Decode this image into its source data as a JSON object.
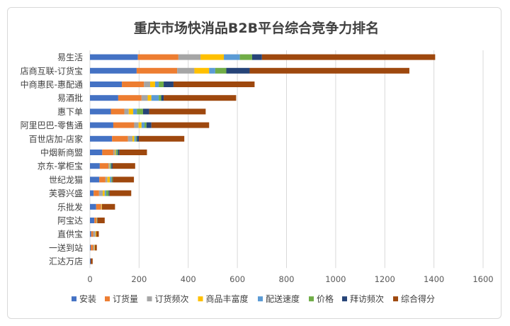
{
  "chart_data": {
    "type": "bar",
    "orientation": "horizontal",
    "stacked": true,
    "title": "重庆市场快消品B2B平台综合竞争力排名",
    "xlabel": "",
    "ylabel": "",
    "xlim": [
      0,
      1600
    ],
    "xticks": [
      0,
      200,
      400,
      600,
      800,
      1000,
      1200,
      1400,
      1600
    ],
    "grid": true,
    "legend_position": "bottom",
    "categories": [
      "易生活",
      "店商互联-订货宝",
      "中商惠民-惠配通",
      "易酒批",
      "惠下单",
      "阿里巴巴-零售通",
      "百世店加-店家",
      "中烟新商盟",
      "京东-掌柜宝",
      "世纪龙猫",
      "芙蓉兴盛",
      "乐批发",
      "阿宝达",
      "直供宝",
      "一送到站",
      "汇达万店"
    ],
    "series": [
      {
        "name": "安装",
        "color": "#4472c4",
        "values": [
          195,
          190,
          130,
          115,
          85,
          95,
          90,
          50,
          40,
          38,
          15,
          25,
          18,
          5,
          3,
          3
        ]
      },
      {
        "name": "订货量",
        "color": "#ed7d31",
        "values": [
          165,
          165,
          90,
          95,
          55,
          85,
          65,
          45,
          35,
          25,
          22,
          20,
          8,
          8,
          10,
          0
        ]
      },
      {
        "name": "订货频次",
        "color": "#a5a5a5",
        "values": [
          90,
          70,
          25,
          25,
          18,
          18,
          18,
          6,
          4,
          8,
          15,
          2,
          0,
          10,
          5,
          0
        ]
      },
      {
        "name": "商品丰富度",
        "color": "#ffc000",
        "values": [
          95,
          60,
          20,
          15,
          18,
          12,
          8,
          4,
          2,
          10,
          8,
          2,
          2,
          3,
          2,
          0
        ]
      },
      {
        "name": "配送速度",
        "color": "#5b9bd5",
        "values": [
          65,
          25,
          15,
          30,
          15,
          12,
          6,
          3,
          2,
          6,
          6,
          0,
          2,
          0,
          0,
          0
        ]
      },
      {
        "name": "价格",
        "color": "#70ad47",
        "values": [
          50,
          45,
          20,
          10,
          25,
          8,
          4,
          6,
          4,
          4,
          10,
          0,
          0,
          0,
          0,
          0
        ]
      },
      {
        "name": "拜访频次",
        "color": "#264478",
        "values": [
          40,
          95,
          40,
          10,
          25,
          20,
          8,
          6,
          5,
          2,
          4,
          0,
          0,
          0,
          0,
          0
        ]
      },
      {
        "name": "综合得分",
        "color": "#9e480e",
        "values": [
          705,
          650,
          330,
          295,
          230,
          235,
          185,
          112,
          92,
          86,
          88,
          53,
          30,
          10,
          8,
          8
        ]
      }
    ]
  }
}
